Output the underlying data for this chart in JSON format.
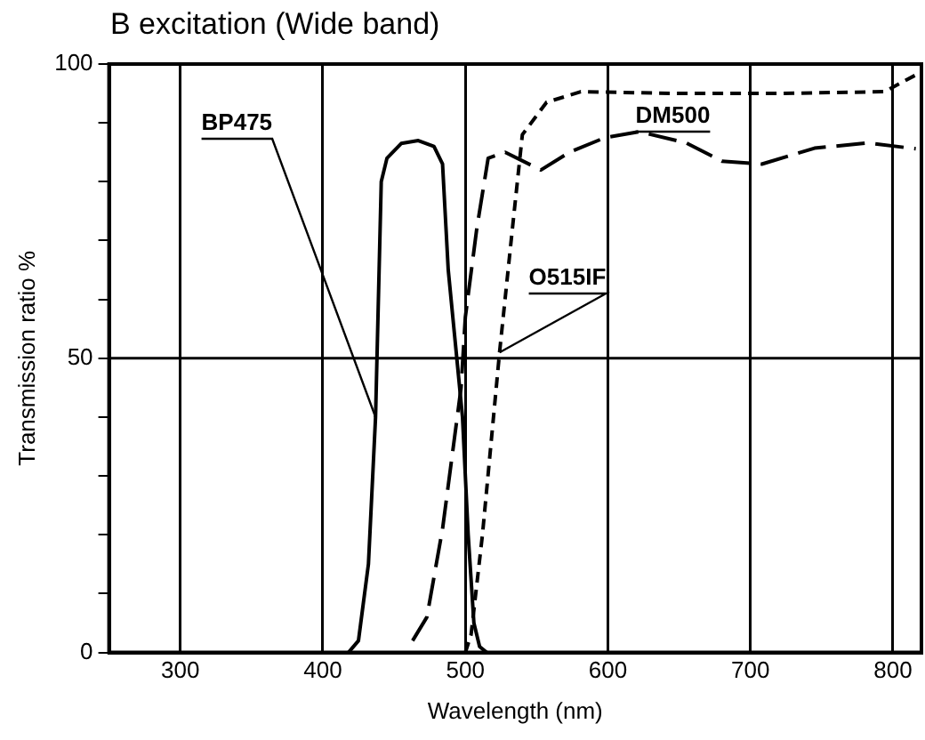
{
  "chart_data": {
    "type": "line",
    "title": "B excitation (Wide band)",
    "xlabel": "Wavelength (nm)",
    "ylabel": "Transmission ratio %",
    "xlim": [
      250,
      820
    ],
    "xticks": [
      300,
      400,
      500,
      600,
      700,
      800
    ],
    "ylim": [
      0,
      100
    ],
    "yticks": [
      0,
      {
        "value": 10,
        "label": null
      },
      {
        "value": 20,
        "label": null
      },
      {
        "value": 30,
        "label": null
      },
      {
        "value": 40,
        "label": null
      },
      50,
      {
        "value": 60,
        "label": null
      },
      {
        "value": 70,
        "label": null
      },
      {
        "value": 80,
        "label": null
      },
      {
        "value": 90,
        "label": null
      },
      100
    ],
    "grid": "x",
    "legend": false,
    "marker": "none",
    "ref_lines": [
      {
        "axis": "y",
        "value": 50,
        "color": "#000000"
      }
    ],
    "series": [
      {
        "name": "BP475",
        "color": "#000000",
        "line_style": "solid",
        "x": [
          418,
          425,
          432,
          437,
          440,
          441,
          445,
          455,
          467,
          478,
          484,
          488,
          494,
          498,
          502,
          506,
          510,
          515
        ],
        "values": [
          0,
          2,
          15,
          40,
          70,
          80,
          84,
          86.5,
          87,
          86,
          83,
          65,
          50,
          40,
          20,
          5,
          1,
          0
        ]
      },
      {
        "name": "DM500",
        "color": "#000000",
        "line_style": "long-dashed",
        "x": [
          463,
          473,
          484,
          497,
          500,
          508,
          516,
          528,
          553,
          573,
          598,
          622,
          655,
          680,
          708,
          745,
          782,
          816
        ],
        "values": [
          2,
          6,
          21,
          45,
          57,
          72,
          84,
          85,
          82,
          85,
          87.5,
          88.5,
          86.6,
          83.5,
          83,
          85.7,
          86.6,
          85.6
        ]
      },
      {
        "name": "O515IF",
        "color": "#000000",
        "line_style": "dashed",
        "x": [
          500,
          504,
          512,
          524,
          533,
          540,
          557,
          581,
          650,
          720,
          794,
          818
        ],
        "values": [
          0,
          3,
          20,
          51,
          72,
          88,
          93.5,
          95.3,
          95,
          95,
          95.3,
          98.4
        ]
      }
    ]
  }
}
